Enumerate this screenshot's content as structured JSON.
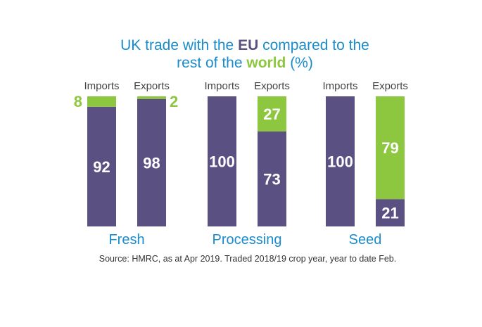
{
  "title_parts": {
    "line1_a": "UK trade with the ",
    "line1_eu": "EU",
    "line1_b": " compared to the",
    "line2_a": "rest of the ",
    "line2_world": "world",
    "line2_b": " (%)"
  },
  "colors": {
    "eu": "#5b5082",
    "world": "#8dc63f",
    "title": "#1a8ccc",
    "group_label": "#1a8ccc"
  },
  "source": "Source: HMRC, as at Apr 2019. Traded 2018/19 crop year, year to date Feb.",
  "chart_data": {
    "type": "bar",
    "stacked": true,
    "title": "UK trade with the EU compared to the rest of the world (%)",
    "groups": [
      "Fresh",
      "Processing",
      "Seed"
    ],
    "bar_labels": [
      "Imports",
      "Exports"
    ],
    "series": [
      {
        "name": "EU",
        "values": [
          [
            92,
            98
          ],
          [
            100,
            73
          ],
          [
            100,
            21
          ]
        ]
      },
      {
        "name": "rest of the world",
        "values": [
          [
            8,
            2
          ],
          [
            0,
            27
          ],
          [
            0,
            79
          ]
        ]
      }
    ],
    "ylim": [
      0,
      100
    ]
  }
}
